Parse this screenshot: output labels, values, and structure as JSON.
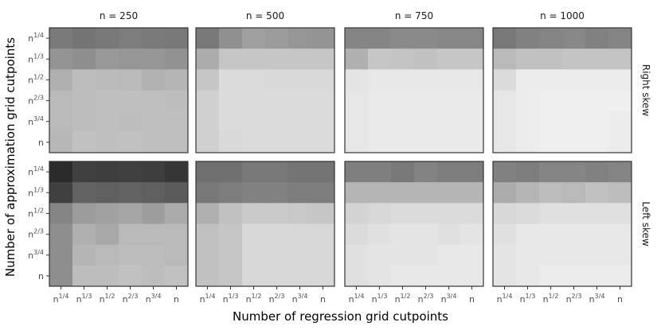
{
  "chart_data": {
    "type": "heatmap",
    "xlabel": "Number of regression grid cutpoints",
    "ylabel": "Number of approximation grid cutpoints",
    "x_ticks": [
      {
        "base": "n",
        "sup": "1/4"
      },
      {
        "base": "n",
        "sup": "1/3"
      },
      {
        "base": "n",
        "sup": "1/2"
      },
      {
        "base": "n",
        "sup": "2/3"
      },
      {
        "base": "n",
        "sup": "3/4"
      },
      {
        "base": "n",
        "sup": ""
      }
    ],
    "y_ticks": [
      {
        "base": "n",
        "sup": "1/4"
      },
      {
        "base": "n",
        "sup": "1/3"
      },
      {
        "base": "n",
        "sup": "1/2"
      },
      {
        "base": "n",
        "sup": "2/3"
      },
      {
        "base": "n",
        "sup": "3/4"
      },
      {
        "base": "n",
        "sup": ""
      }
    ],
    "columns": [
      "n = 250",
      "n = 500",
      "n = 750",
      "n = 1000"
    ],
    "rows": [
      "Right skew",
      "Left skew"
    ],
    "color_scale": {
      "low": "#f5f5f5",
      "high": "#1e1e1e",
      "min": 0,
      "max": 1
    },
    "panels": [
      {
        "column": "n = 250",
        "row": "Right skew",
        "values": [
          [
            0.57,
            0.6,
            0.58,
            0.56,
            0.57,
            0.58
          ],
          [
            0.45,
            0.48,
            0.43,
            0.44,
            0.44,
            0.46
          ],
          [
            0.32,
            0.26,
            0.27,
            0.28,
            0.31,
            0.3
          ],
          [
            0.28,
            0.26,
            0.25,
            0.25,
            0.25,
            0.26
          ],
          [
            0.28,
            0.26,
            0.25,
            0.26,
            0.25,
            0.25
          ],
          [
            0.29,
            0.24,
            0.25,
            0.24,
            0.25,
            0.25
          ]
        ]
      },
      {
        "column": "n = 500",
        "row": "Right skew",
        "values": [
          [
            0.58,
            0.47,
            0.4,
            0.42,
            0.44,
            0.45
          ],
          [
            0.34,
            0.22,
            0.22,
            0.22,
            0.22,
            0.22
          ],
          [
            0.22,
            0.12,
            0.12,
            0.13,
            0.13,
            0.13
          ],
          [
            0.17,
            0.12,
            0.12,
            0.12,
            0.12,
            0.12
          ],
          [
            0.17,
            0.12,
            0.12,
            0.12,
            0.12,
            0.12
          ],
          [
            0.17,
            0.13,
            0.12,
            0.12,
            0.12,
            0.12
          ]
        ]
      },
      {
        "column": "n = 750",
        "row": "Right skew",
        "values": [
          [
            0.52,
            0.52,
            0.5,
            0.5,
            0.51,
            0.51
          ],
          [
            0.32,
            0.22,
            0.23,
            0.24,
            0.22,
            0.22
          ],
          [
            0.08,
            0.06,
            0.06,
            0.06,
            0.06,
            0.06
          ],
          [
            0.07,
            0.05,
            0.05,
            0.05,
            0.05,
            0.05
          ],
          [
            0.07,
            0.05,
            0.05,
            0.05,
            0.05,
            0.05
          ],
          [
            0.07,
            0.05,
            0.05,
            0.05,
            0.05,
            0.05
          ]
        ]
      },
      {
        "column": "n = 1000",
        "row": "Right skew",
        "values": [
          [
            0.58,
            0.54,
            0.52,
            0.51,
            0.54,
            0.52
          ],
          [
            0.28,
            0.24,
            0.24,
            0.23,
            0.23,
            0.23
          ],
          [
            0.12,
            0.04,
            0.04,
            0.04,
            0.04,
            0.04
          ],
          [
            0.07,
            0.04,
            0.03,
            0.03,
            0.03,
            0.03
          ],
          [
            0.07,
            0.04,
            0.03,
            0.03,
            0.03,
            0.04
          ],
          [
            0.07,
            0.04,
            0.03,
            0.03,
            0.03,
            0.04
          ]
        ]
      },
      {
        "column": "n = 250",
        "row": "Left skew",
        "values": [
          [
            0.94,
            0.84,
            0.85,
            0.84,
            0.85,
            0.89
          ],
          [
            0.84,
            0.68,
            0.7,
            0.68,
            0.7,
            0.72
          ],
          [
            0.52,
            0.42,
            0.39,
            0.37,
            0.41,
            0.35
          ],
          [
            0.48,
            0.32,
            0.36,
            0.28,
            0.28,
            0.28
          ],
          [
            0.48,
            0.3,
            0.28,
            0.26,
            0.26,
            0.28
          ],
          [
            0.48,
            0.26,
            0.26,
            0.24,
            0.26,
            0.24
          ]
        ]
      },
      {
        "column": "n = 500",
        "row": "Left skew",
        "values": [
          [
            0.62,
            0.62,
            0.58,
            0.58,
            0.6,
            0.6
          ],
          [
            0.58,
            0.56,
            0.54,
            0.54,
            0.56,
            0.56
          ],
          [
            0.32,
            0.24,
            0.2,
            0.2,
            0.21,
            0.22
          ],
          [
            0.24,
            0.22,
            0.14,
            0.14,
            0.14,
            0.14
          ],
          [
            0.24,
            0.22,
            0.14,
            0.14,
            0.14,
            0.14
          ],
          [
            0.24,
            0.22,
            0.14,
            0.14,
            0.14,
            0.14
          ]
        ]
      },
      {
        "column": "n = 750",
        "row": "Left skew",
        "values": [
          [
            0.55,
            0.55,
            0.58,
            0.53,
            0.56,
            0.56
          ],
          [
            0.3,
            0.3,
            0.3,
            0.3,
            0.3,
            0.3
          ],
          [
            0.16,
            0.14,
            0.12,
            0.12,
            0.12,
            0.12
          ],
          [
            0.12,
            0.1,
            0.08,
            0.08,
            0.1,
            0.08
          ],
          [
            0.1,
            0.08,
            0.08,
            0.08,
            0.06,
            0.06
          ],
          [
            0.1,
            0.08,
            0.06,
            0.06,
            0.06,
            0.06
          ]
        ]
      },
      {
        "column": "n = 1000",
        "row": "Left skew",
        "values": [
          [
            0.54,
            0.56,
            0.52,
            0.52,
            0.54,
            0.52
          ],
          [
            0.34,
            0.3,
            0.26,
            0.28,
            0.24,
            0.26
          ],
          [
            0.14,
            0.12,
            0.1,
            0.1,
            0.1,
            0.1
          ],
          [
            0.1,
            0.06,
            0.06,
            0.06,
            0.06,
            0.06
          ],
          [
            0.08,
            0.06,
            0.06,
            0.06,
            0.06,
            0.06
          ],
          [
            0.08,
            0.06,
            0.04,
            0.04,
            0.04,
            0.04
          ]
        ]
      }
    ]
  }
}
